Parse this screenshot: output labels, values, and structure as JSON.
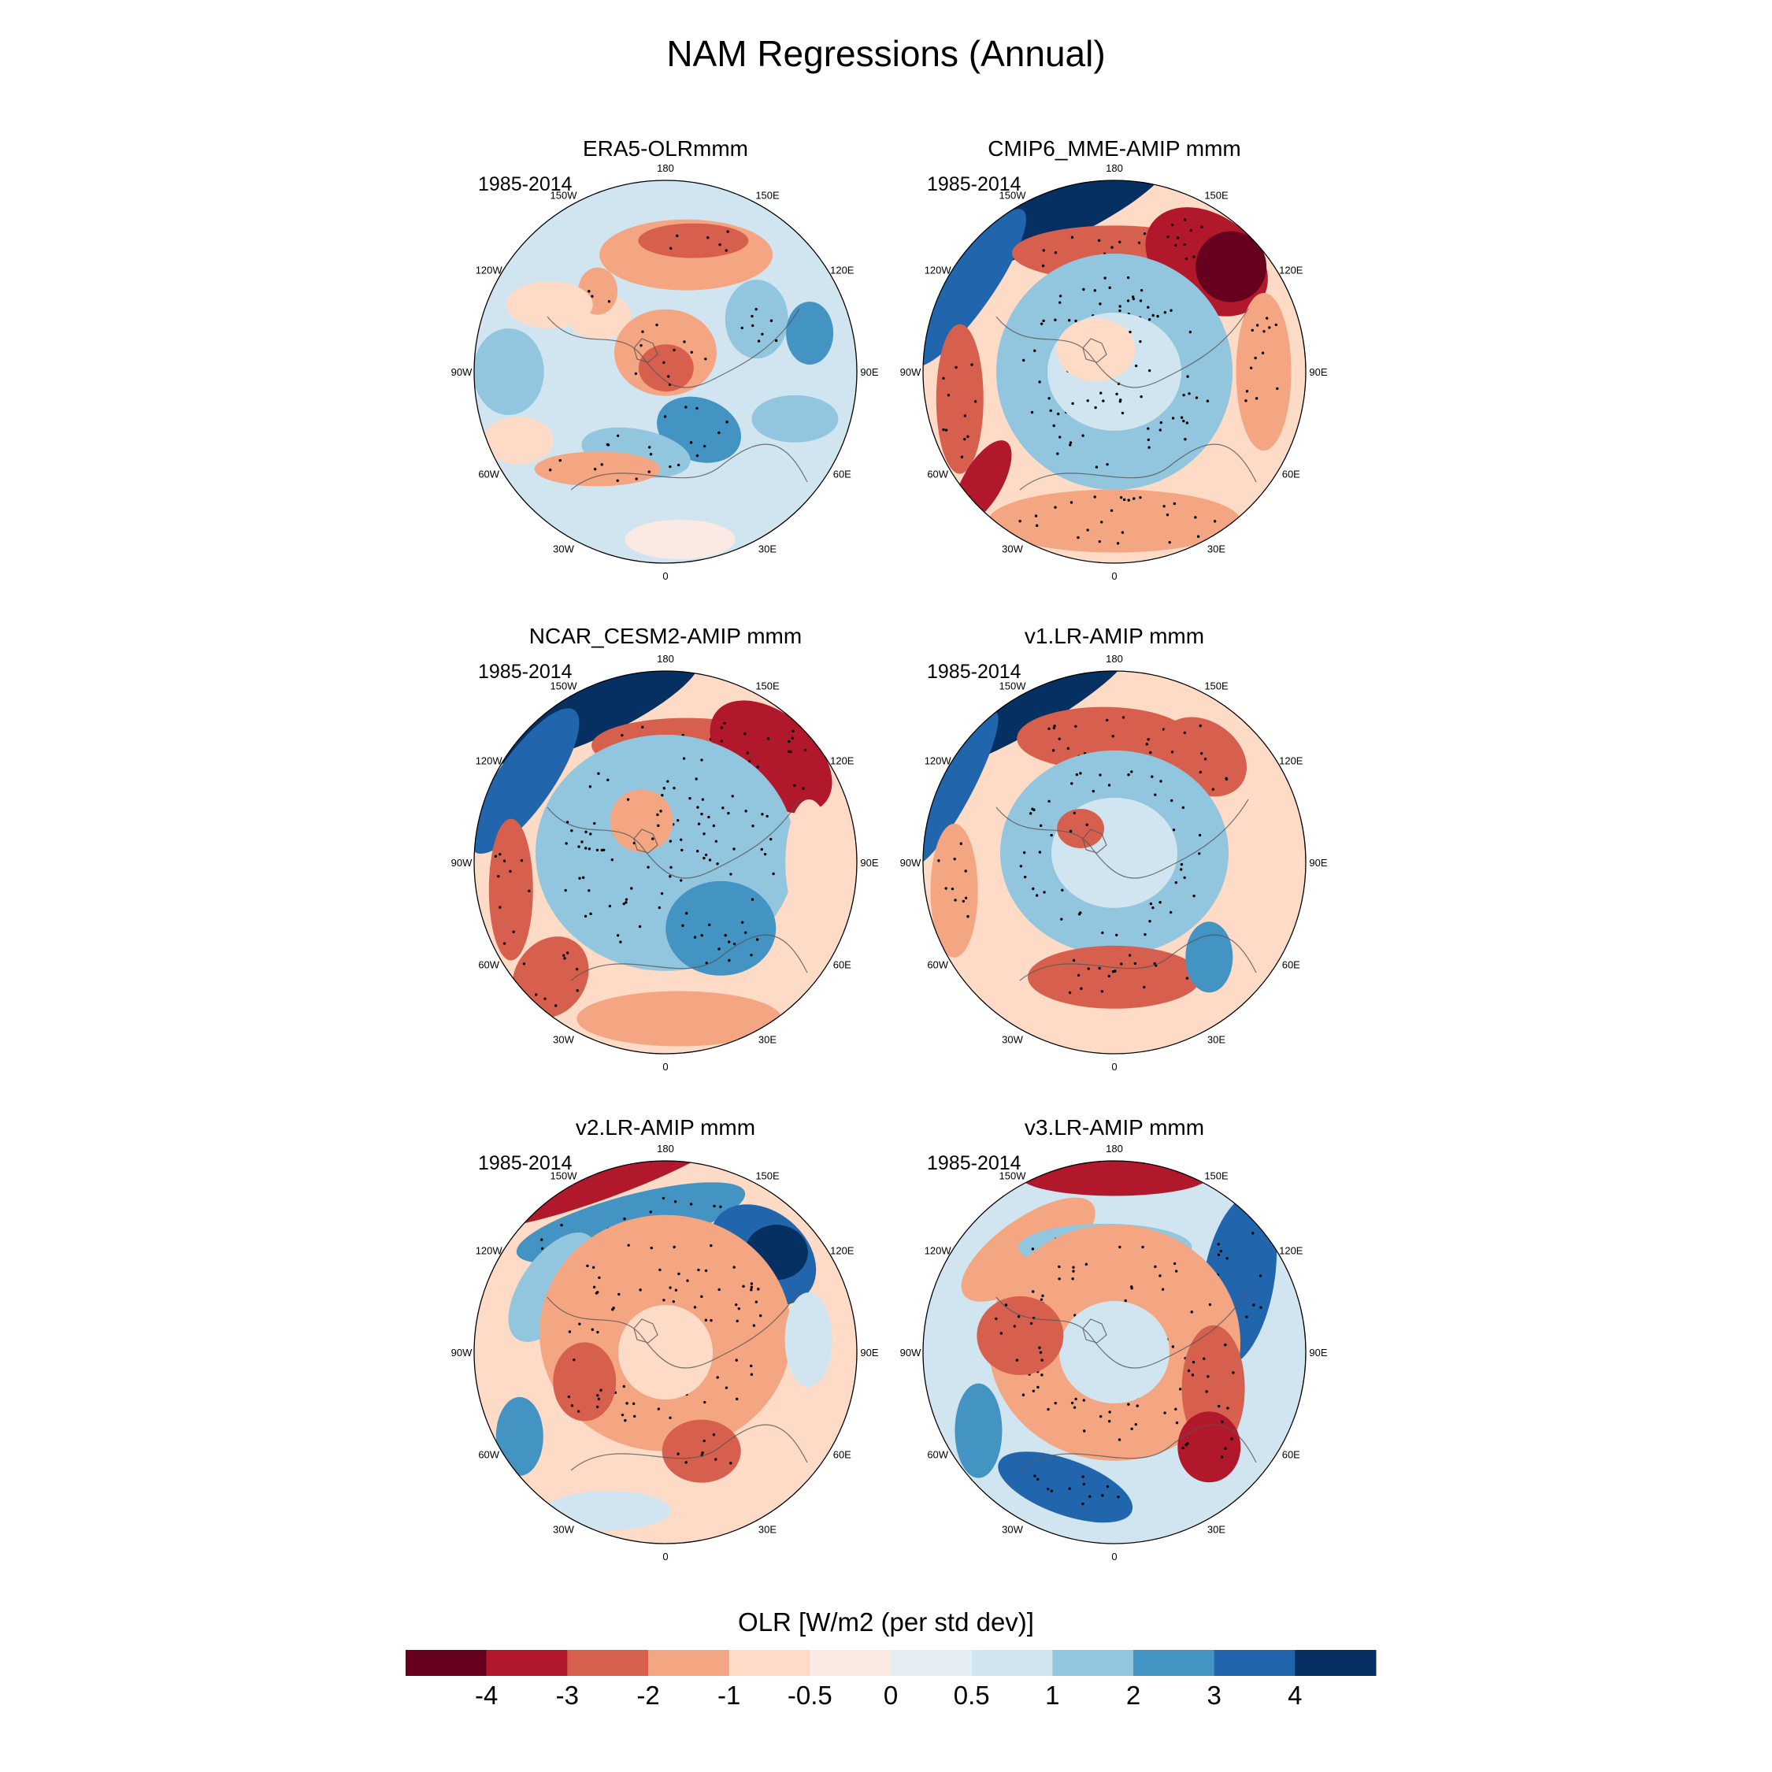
{
  "figure": {
    "title": "NAM Regressions (Annual)"
  },
  "lon_labels": [
    "180",
    "150E",
    "120E",
    "90E",
    "60E",
    "30E",
    "0",
    "30W",
    "60W",
    "90W",
    "120W",
    "150W"
  ],
  "panels": [
    {
      "id": "era5",
      "title": "ERA5-OLRmmm",
      "period": "1985-2014",
      "pattern": "obs"
    },
    {
      "id": "cmip6",
      "title": "CMIP6_MME-AMIP  mmm",
      "period": "1985-2014",
      "pattern": "mme"
    },
    {
      "id": "cesm2",
      "title": "NCAR_CESM2-AMIP  mmm",
      "period": "1985-2014",
      "pattern": "cesm"
    },
    {
      "id": "v1",
      "title": "v1.LR-AMIP  mmm",
      "period": "1985-2014",
      "pattern": "v1"
    },
    {
      "id": "v2",
      "title": "v2.LR-AMIP  mmm",
      "period": "1985-2014",
      "pattern": "v2"
    },
    {
      "id": "v3",
      "title": "v3.LR-AMIP  mmm",
      "period": "1985-2014",
      "pattern": "v3"
    }
  ],
  "colorbar": {
    "title": "OLR [W/m2 (per std dev)]",
    "ticks": [
      "-4",
      "-3",
      "-2",
      "-1",
      "-0.5",
      "0",
      "0.5",
      "1",
      "2",
      "3",
      "4"
    ],
    "colors": [
      "#67001f",
      "#b2182b",
      "#d6604d",
      "#f4a582",
      "#fddbc7",
      "#fbe9e3",
      "#e5eef5",
      "#d1e5f0",
      "#92c5de",
      "#4393c3",
      "#2166ac",
      "#053061"
    ]
  }
}
